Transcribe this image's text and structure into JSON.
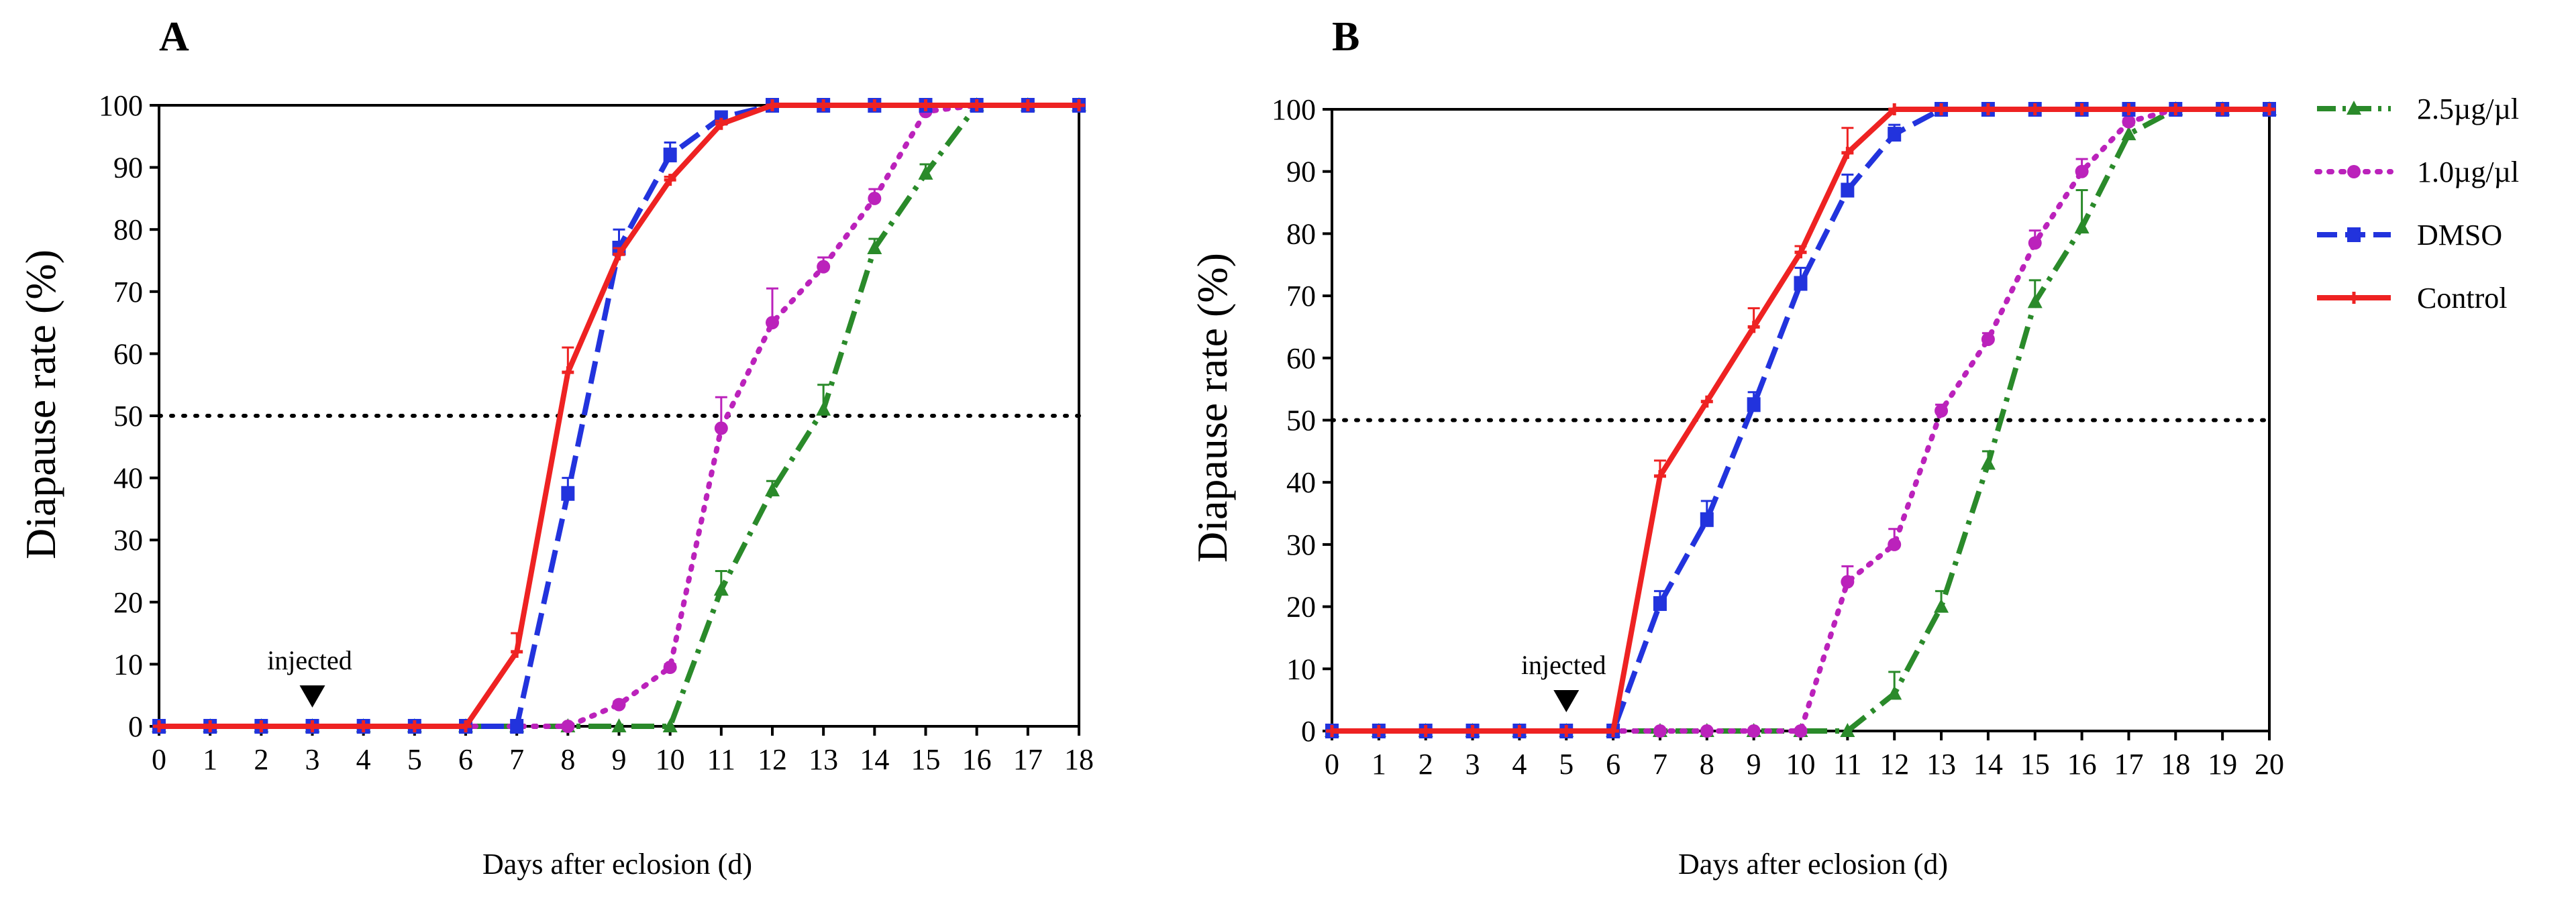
{
  "chart_data": [
    {
      "panel": "A",
      "type": "line",
      "title": "",
      "xlabel": "Days after eclosion (d)",
      "ylabel": "Diapause rate (%)",
      "xlim": [
        0,
        18
      ],
      "ylim": [
        0,
        100
      ],
      "x_ticks": [
        0,
        1,
        2,
        3,
        4,
        5,
        6,
        7,
        8,
        9,
        10,
        11,
        12,
        13,
        14,
        15,
        16,
        17,
        18
      ],
      "y_ticks": [
        0,
        10,
        20,
        30,
        40,
        50,
        60,
        70,
        80,
        90,
        100
      ],
      "reference_line": 50,
      "grid": false,
      "annotation": {
        "text": "injected",
        "x": 3
      },
      "series": [
        {
          "name": "2.5µg/µl",
          "color": "#2a8a2a",
          "dash": "dashdot",
          "marker": "triangle",
          "x": [
            0,
            1,
            2,
            3,
            4,
            5,
            6,
            7,
            8,
            9,
            10,
            11,
            12,
            13,
            14,
            15,
            16,
            17,
            18
          ],
          "values": [
            0,
            0,
            0,
            0,
            0,
            0,
            0,
            0,
            0,
            0,
            0,
            22,
            38,
            51,
            77,
            89,
            100,
            100,
            100
          ],
          "err": [
            0,
            0,
            0,
            0,
            0,
            0,
            0,
            0,
            0,
            0,
            0,
            3,
            1.5,
            4,
            1.5,
            1.5,
            0,
            0,
            0
          ]
        },
        {
          "name": "1.0µg/µl",
          "color": "#bb22bb",
          "dash": "dotted",
          "marker": "circle",
          "x": [
            0,
            1,
            2,
            3,
            4,
            5,
            6,
            7,
            8,
            9,
            10,
            11,
            12,
            13,
            14,
            15,
            16,
            17,
            18
          ],
          "values": [
            0,
            0,
            0,
            0,
            0,
            0,
            0,
            0,
            0,
            3.5,
            9.5,
            48,
            65,
            74,
            85,
            99,
            100,
            100,
            100
          ],
          "err": [
            0,
            0,
            0,
            0,
            0,
            0,
            0,
            0,
            0,
            0.5,
            0.5,
            5,
            5.5,
            1.5,
            1.5,
            0.5,
            0,
            0,
            0
          ]
        },
        {
          "name": "DMSO",
          "color": "#2233dd",
          "dash": "dashed",
          "marker": "square",
          "x": [
            0,
            1,
            2,
            3,
            4,
            5,
            6,
            7,
            8,
            9,
            10,
            11,
            12,
            13,
            14,
            15,
            16,
            17,
            18
          ],
          "values": [
            0,
            0,
            0,
            0,
            0,
            0,
            0,
            0,
            37.5,
            77,
            92,
            98,
            100,
            100,
            100,
            100,
            100,
            100,
            100
          ],
          "err": [
            0,
            0,
            0,
            0,
            0,
            0,
            0,
            0,
            2.5,
            3,
            2,
            1,
            0,
            0,
            0,
            0,
            0,
            0,
            0
          ]
        },
        {
          "name": "Control",
          "color": "#ee2222",
          "dash": "solid",
          "marker": "plus",
          "x": [
            0,
            1,
            2,
            3,
            4,
            5,
            6,
            7,
            8,
            9,
            10,
            11,
            12,
            13,
            14,
            15,
            16,
            17,
            18
          ],
          "values": [
            0,
            0,
            0,
            0,
            0,
            0,
            0,
            12,
            57,
            76,
            88,
            97,
            100,
            100,
            100,
            100,
            100,
            100,
            100
          ],
          "err": [
            0,
            0,
            0,
            0,
            0,
            0,
            0,
            3,
            4,
            1,
            0.5,
            0.5,
            0,
            0,
            0,
            0,
            0,
            0,
            0
          ]
        }
      ]
    },
    {
      "panel": "B",
      "type": "line",
      "title": "",
      "xlabel": "Days after eclosion (d)",
      "ylabel": "Diapause rate (%)",
      "xlim": [
        0,
        20
      ],
      "ylim": [
        0,
        100
      ],
      "x_ticks": [
        0,
        1,
        2,
        3,
        4,
        5,
        6,
        7,
        8,
        9,
        10,
        11,
        12,
        13,
        14,
        15,
        16,
        17,
        18,
        19,
        20
      ],
      "y_ticks": [
        0,
        10,
        20,
        30,
        40,
        50,
        60,
        70,
        80,
        90,
        100
      ],
      "reference_line": 50,
      "grid": false,
      "annotation": {
        "text": "injected",
        "x": 5
      },
      "series": [
        {
          "name": "2.5µg/µl",
          "color": "#2a8a2a",
          "dash": "dashdot",
          "marker": "triangle",
          "x": [
            0,
            1,
            2,
            3,
            4,
            5,
            6,
            7,
            8,
            9,
            10,
            11,
            12,
            13,
            14,
            15,
            16,
            17,
            18,
            19,
            20
          ],
          "values": [
            0,
            0,
            0,
            0,
            0,
            0,
            0,
            0,
            0,
            0,
            0,
            0,
            6,
            20,
            43,
            69,
            81,
            96,
            100,
            100,
            100
          ],
          "err": [
            0,
            0,
            0,
            0,
            0,
            0,
            0,
            0,
            0,
            0,
            0,
            0,
            3.5,
            2.5,
            2,
            3.5,
            6,
            1.5,
            0,
            0,
            0
          ]
        },
        {
          "name": "1.0µg/µl",
          "color": "#bb22bb",
          "dash": "dotted",
          "marker": "circle",
          "x": [
            0,
            1,
            2,
            3,
            4,
            5,
            6,
            7,
            8,
            9,
            10,
            11,
            12,
            13,
            14,
            15,
            16,
            17,
            18,
            19,
            20
          ],
          "values": [
            0,
            0,
            0,
            0,
            0,
            0,
            0,
            0,
            0,
            0,
            0,
            24,
            30,
            51.5,
            63,
            78.5,
            90,
            98,
            100,
            100,
            100
          ],
          "err": [
            0,
            0,
            0,
            0,
            0,
            0,
            0,
            0,
            0,
            0,
            0,
            2.5,
            2.5,
            1,
            1,
            2,
            2,
            0.5,
            0,
            0,
            0
          ]
        },
        {
          "name": "DMSO",
          "color": "#2233dd",
          "dash": "dashed",
          "marker": "square",
          "x": [
            0,
            1,
            2,
            3,
            4,
            5,
            6,
            7,
            8,
            9,
            10,
            11,
            12,
            13,
            14,
            15,
            16,
            17,
            18,
            19,
            20
          ],
          "values": [
            0,
            0,
            0,
            0,
            0,
            0,
            0,
            20.5,
            34,
            52.5,
            72,
            87,
            96,
            100,
            100,
            100,
            100,
            100,
            100,
            100,
            100
          ],
          "err": [
            0,
            0,
            0,
            0,
            0,
            0,
            0,
            2,
            3,
            2,
            2.5,
            2.5,
            1.5,
            0,
            0,
            0,
            0,
            0,
            0,
            0,
            0
          ]
        },
        {
          "name": "Control",
          "color": "#ee2222",
          "dash": "solid",
          "marker": "plus",
          "x": [
            0,
            1,
            2,
            3,
            4,
            5,
            6,
            7,
            8,
            9,
            10,
            11,
            12,
            13,
            14,
            15,
            16,
            17,
            18,
            19,
            20
          ],
          "values": [
            0,
            0,
            0,
            0,
            0,
            0,
            0,
            41,
            53,
            65,
            77,
            93,
            100,
            100,
            100,
            100,
            100,
            100,
            100,
            100,
            100
          ],
          "err": [
            0,
            0,
            0,
            0,
            0,
            0,
            0,
            2.5,
            0,
            3,
            1,
            4,
            0,
            0,
            0,
            0,
            0,
            0,
            0,
            0,
            0
          ]
        }
      ]
    }
  ],
  "legend": {
    "entries": [
      {
        "label": "2.5µg/µl",
        "color": "#2a8a2a",
        "dash": "dashdot",
        "marker": "triangle"
      },
      {
        "label": "1.0µg/µl",
        "color": "#bb22bb",
        "dash": "dotted",
        "marker": "circle"
      },
      {
        "label": "DMSO",
        "color": "#2233dd",
        "dash": "dashed",
        "marker": "square"
      },
      {
        "label": "Control",
        "color": "#ee2222",
        "dash": "solid",
        "marker": "plus"
      }
    ]
  }
}
